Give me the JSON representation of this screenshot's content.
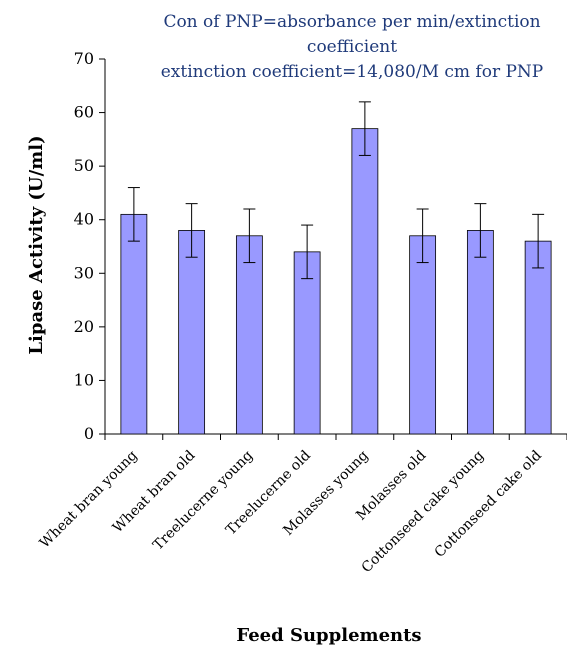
{
  "chart_data": {
    "type": "bar",
    "annotations": [
      "Con of PNP=absorbance per min/extinction",
      "coefficient",
      "extinction coefficient=14,080/M cm for PNP"
    ],
    "xlabel": "Feed Supplements",
    "ylabel": "Lipase Activity (U/ml)",
    "ylim": [
      0,
      70
    ],
    "yticks": [
      0,
      10,
      20,
      30,
      40,
      50,
      60,
      70
    ],
    "categories": [
      "Wheat bran young",
      "Wheat bran old",
      "Treelucerne young",
      "Treelucerne old",
      "Molasses young",
      "Molasses old",
      "Cottonseed cake young",
      "Cottonseed cake old"
    ],
    "values": [
      41,
      38,
      37,
      34,
      57,
      37,
      38,
      36
    ],
    "errors": [
      5,
      5,
      5,
      5,
      5,
      5,
      5,
      5
    ],
    "bar_color": "#9999ff",
    "grid": false,
    "legend": "none"
  }
}
